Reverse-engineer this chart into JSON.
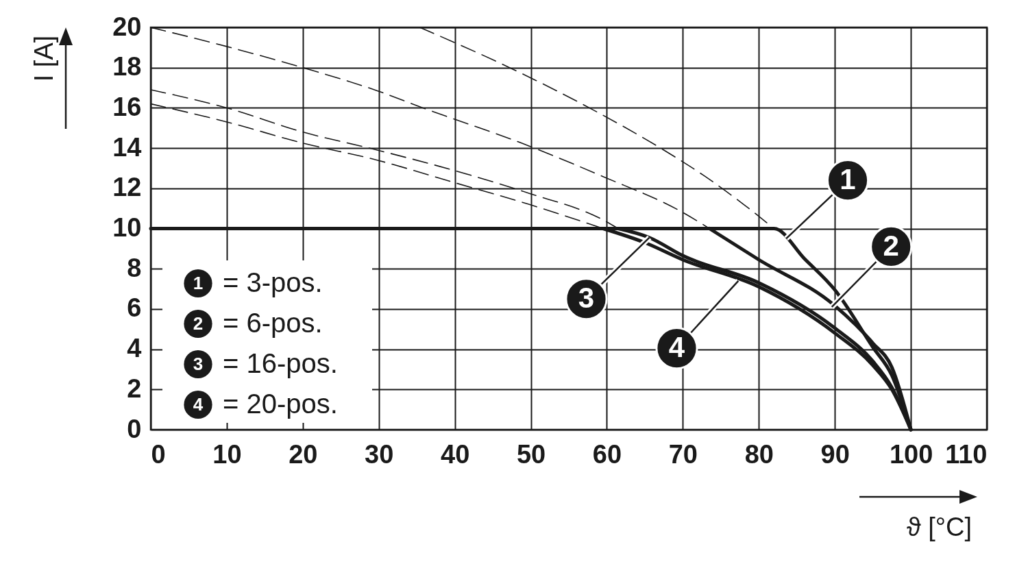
{
  "chart_data": {
    "type": "line",
    "xlabel": "ϑ [°C]",
    "ylabel": "I [A]",
    "xlim": [
      0,
      110
    ],
    "xticks": [
      0,
      10,
      20,
      30,
      40,
      50,
      60,
      70,
      80,
      90,
      100,
      110
    ],
    "ylim": [
      0,
      20
    ],
    "yticks": [
      0,
      2,
      4,
      6,
      8,
      10,
      12,
      14,
      16,
      18,
      20
    ],
    "grid": true,
    "legend": "bottom left",
    "series": [
      {
        "name": "= 3-pos.",
        "color": "#1a1a1a",
        "line_style": "solid",
        "x": [
          0,
          82,
          86,
          90,
          95,
          97.5,
          100
        ],
        "values": [
          10,
          10,
          8.5,
          6.95,
          4.1,
          2.7,
          0
        ]
      },
      {
        "name": "= 6-pos.",
        "color": "#1a1a1a",
        "line_style": "solid",
        "x": [
          73.5,
          80,
          90,
          95,
          97.5,
          100
        ],
        "values": [
          10,
          8.45,
          6.16,
          4.3,
          3.1,
          0
        ]
      },
      {
        "name": "= 16-pos.",
        "color": "#1a1a1a",
        "line_style": "solid",
        "x": [
          61.5,
          65.6,
          70,
          80,
          90,
          95,
          97.5,
          100
        ],
        "values": [
          10,
          9.55,
          8.65,
          7.3,
          5.05,
          3.4,
          2.1,
          0
        ]
      },
      {
        "name": "= 20-pos.",
        "color": "#1a1a1a",
        "line_style": "solid",
        "x": [
          59.5,
          65,
          70,
          80,
          90,
          95,
          97.5,
          100
        ],
        "values": [
          10,
          9.3,
          8.45,
          7.1,
          4.8,
          3.2,
          2.0,
          0
        ]
      },
      {
        "color": "#1a1a1a",
        "line_style": "dashed",
        "x": [
          35.4,
          47.2,
          58.2,
          67.5,
          72.9,
          78,
          82
        ],
        "values": [
          20,
          18,
          15.9,
          13.9,
          12.6,
          11.2,
          10
        ]
      },
      {
        "color": "#1a1a1a",
        "line_style": "dashed",
        "x": [
          0,
          10,
          20,
          29.8,
          35.8,
          49.8,
          59.4,
          70,
          73.5
        ],
        "values": [
          20,
          19.05,
          18,
          16.85,
          16,
          14.1,
          12.6,
          10.8,
          10
        ]
      },
      {
        "color": "#1a1a1a",
        "line_style": "dashed",
        "x": [
          0,
          10,
          20,
          29.8,
          39.8,
          49.8,
          59.4,
          61.5
        ],
        "values": [
          16.9,
          16,
          14.8,
          13.9,
          12.9,
          11.75,
          10.45,
          10
        ]
      },
      {
        "color": "#1a1a1a",
        "line_style": "dashed",
        "x": [
          0,
          10,
          20,
          29.8,
          39.8,
          49.8,
          59.5
        ],
        "values": [
          16.2,
          15.3,
          14.25,
          13.4,
          12.3,
          11.2,
          10
        ]
      }
    ],
    "annotations": [
      {
        "text": "1",
        "x": 83.6,
        "y": 9.5
      },
      {
        "text": "2",
        "x": 89.6,
        "y": 6.1
      },
      {
        "text": "3",
        "x": 65.6,
        "y": 9.55
      },
      {
        "text": "4",
        "x": 77.3,
        "y": 7.4
      }
    ]
  }
}
